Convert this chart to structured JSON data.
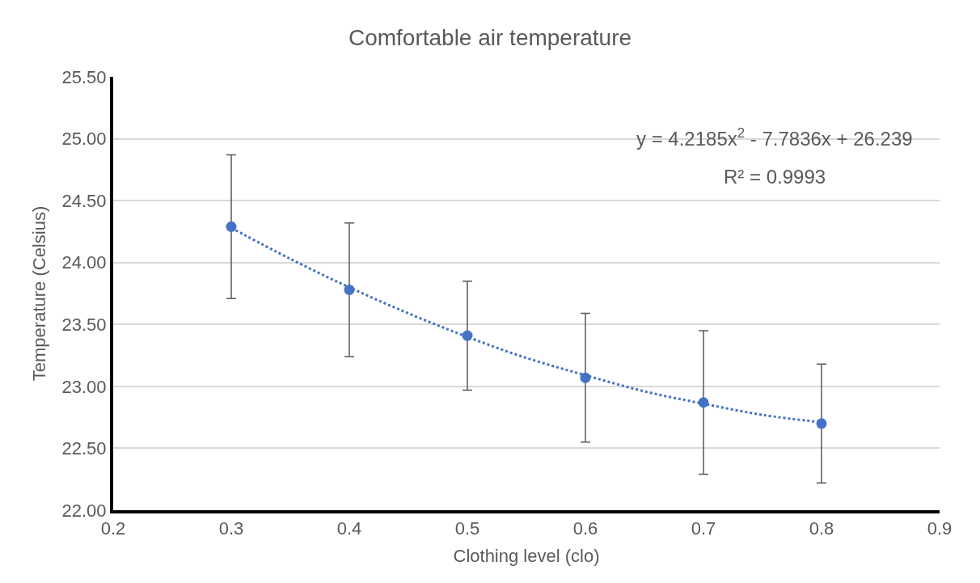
{
  "chart_data": {
    "type": "scatter",
    "title": "Comfortable air temperature",
    "xlabel": "Clothing level (clo)",
    "ylabel": "Temperature (Celsius)",
    "annotations": [
      "y = 4.2185x$^{2}$ - 7.7836x + 26.239",
      "R² = 0.9993"
    ],
    "x": [
      0.3,
      0.4,
      0.5,
      0.6,
      0.7,
      0.8
    ],
    "series": [
      {
        "color": "#4472c4",
        "marker": "circle",
        "values": [
          24.29,
          23.78,
          23.41,
          23.07,
          22.87,
          22.7
        ],
        "errors": [
          0.58,
          0.54,
          0.44,
          0.52,
          0.58,
          0.48
        ]
      },
      {
        "type": "line",
        "color": "#4472c4",
        "marker": "none",
        "line_style": "dotted",
        "x": [
          0.3,
          0.35,
          0.4,
          0.45,
          0.5,
          0.55,
          0.6,
          0.65,
          0.7,
          0.75,
          0.8
        ],
        "values": [
          24.28,
          24.03,
          23.8,
          23.59,
          23.4,
          23.23,
          23.09,
          22.96,
          22.86,
          22.77,
          22.71
        ]
      }
    ],
    "xlim": [
      0.2,
      0.9
    ],
    "xticks": [
      0.2,
      0.3,
      0.4,
      0.5,
      0.6,
      0.7,
      0.8,
      0.9
    ],
    "ylim": [
      22,
      25.5
    ],
    "yticks": [
      {
        "value": 22,
        "label": "22.00"
      },
      {
        "value": 22.5,
        "label": "22.50"
      },
      {
        "value": 23,
        "label": "23.00"
      },
      {
        "value": 23.5,
        "label": "23.50"
      },
      {
        "value": 24,
        "label": "24.00"
      },
      {
        "value": 24.5,
        "label": "24.50"
      },
      {
        "value": 25,
        "label": "25.00"
      },
      {
        "value": 25.5,
        "label": "25.50"
      }
    ],
    "grid": "y"
  }
}
